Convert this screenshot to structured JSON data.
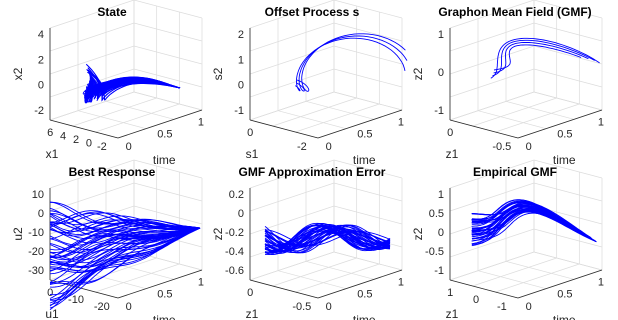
{
  "figure": {
    "color": "#0000ff"
  },
  "chart_data": [
    {
      "type": "line",
      "title": "State",
      "xlabel": "x1",
      "ylabel": "x2",
      "zlabel": "time",
      "x_ticks": [
        "6",
        "4",
        "2",
        "0",
        "-2"
      ],
      "y_ticks": [
        "4",
        "2",
        "0",
        "-2"
      ],
      "z_ticks": [
        "0",
        "0.5",
        "1"
      ],
      "xlim": [
        -2,
        6
      ],
      "ylim": [
        -3,
        5
      ],
      "zlim": [
        0,
        1
      ],
      "curve_count": 60
    },
    {
      "type": "line",
      "title": "Offset Process s",
      "xlabel": "s1",
      "ylabel": "s2",
      "zlabel": "time",
      "x_ticks": [
        "0",
        "-2"
      ],
      "y_ticks": [
        "2",
        "1",
        "0",
        "-1"
      ],
      "z_ticks": [
        "0",
        "0.5",
        "1"
      ],
      "xlim": [
        -3,
        1
      ],
      "ylim": [
        -1.5,
        2.5
      ],
      "zlim": [
        0,
        1
      ],
      "curve_count": 3
    },
    {
      "type": "line",
      "title": "Graphon Mean Field (GMF)",
      "xlabel": "z1",
      "ylabel": "z2",
      "zlabel": "time",
      "x_ticks": [
        "0",
        "-0.5"
      ],
      "y_ticks": [
        "1",
        "0",
        "-1"
      ],
      "z_ticks": [
        "0",
        "0.5",
        "1"
      ],
      "xlim": [
        -0.8,
        0.3
      ],
      "ylim": [
        -1.2,
        1.2
      ],
      "zlim": [
        0,
        1
      ],
      "curve_count": 4
    },
    {
      "type": "line",
      "title": "Best Response",
      "xlabel": "u1",
      "ylabel": "u2",
      "zlabel": "time",
      "x_ticks": [
        "0",
        "-10",
        "-20"
      ],
      "y_ticks": [
        "10",
        "0",
        "-10",
        "-20",
        "-30"
      ],
      "z_ticks": [
        "0",
        "0.5",
        "1"
      ],
      "xlim": [
        -25,
        5
      ],
      "ylim": [
        -35,
        15
      ],
      "zlim": [
        0,
        1
      ],
      "curve_count": 60
    },
    {
      "type": "line",
      "title": "GMF Approximation Error",
      "xlabel": "z1",
      "ylabel": "z2",
      "zlabel": "time",
      "x_ticks": [
        "0",
        "-0.5"
      ],
      "y_ticks": [
        "0.2",
        "0",
        "-0.2",
        "-0.4",
        "-0.6"
      ],
      "z_ticks": [
        "0",
        "0.5",
        "1"
      ],
      "xlim": [
        -0.8,
        0.3
      ],
      "ylim": [
        -0.7,
        0.3
      ],
      "zlim": [
        0,
        1
      ],
      "curve_count": 40
    },
    {
      "type": "line",
      "title": "Empirical GMF",
      "xlabel": "z1",
      "ylabel": "z2",
      "zlabel": "time",
      "x_ticks": [
        "1",
        "0",
        "-1"
      ],
      "y_ticks": [
        "1",
        "0.5",
        "0",
        "-0.5",
        "-1"
      ],
      "z_ticks": [
        "0",
        "0.5",
        "1"
      ],
      "xlim": [
        -1.2,
        1.2
      ],
      "ylim": [
        -1.2,
        1.2
      ],
      "zlim": [
        0,
        1
      ],
      "curve_count": 40
    }
  ]
}
